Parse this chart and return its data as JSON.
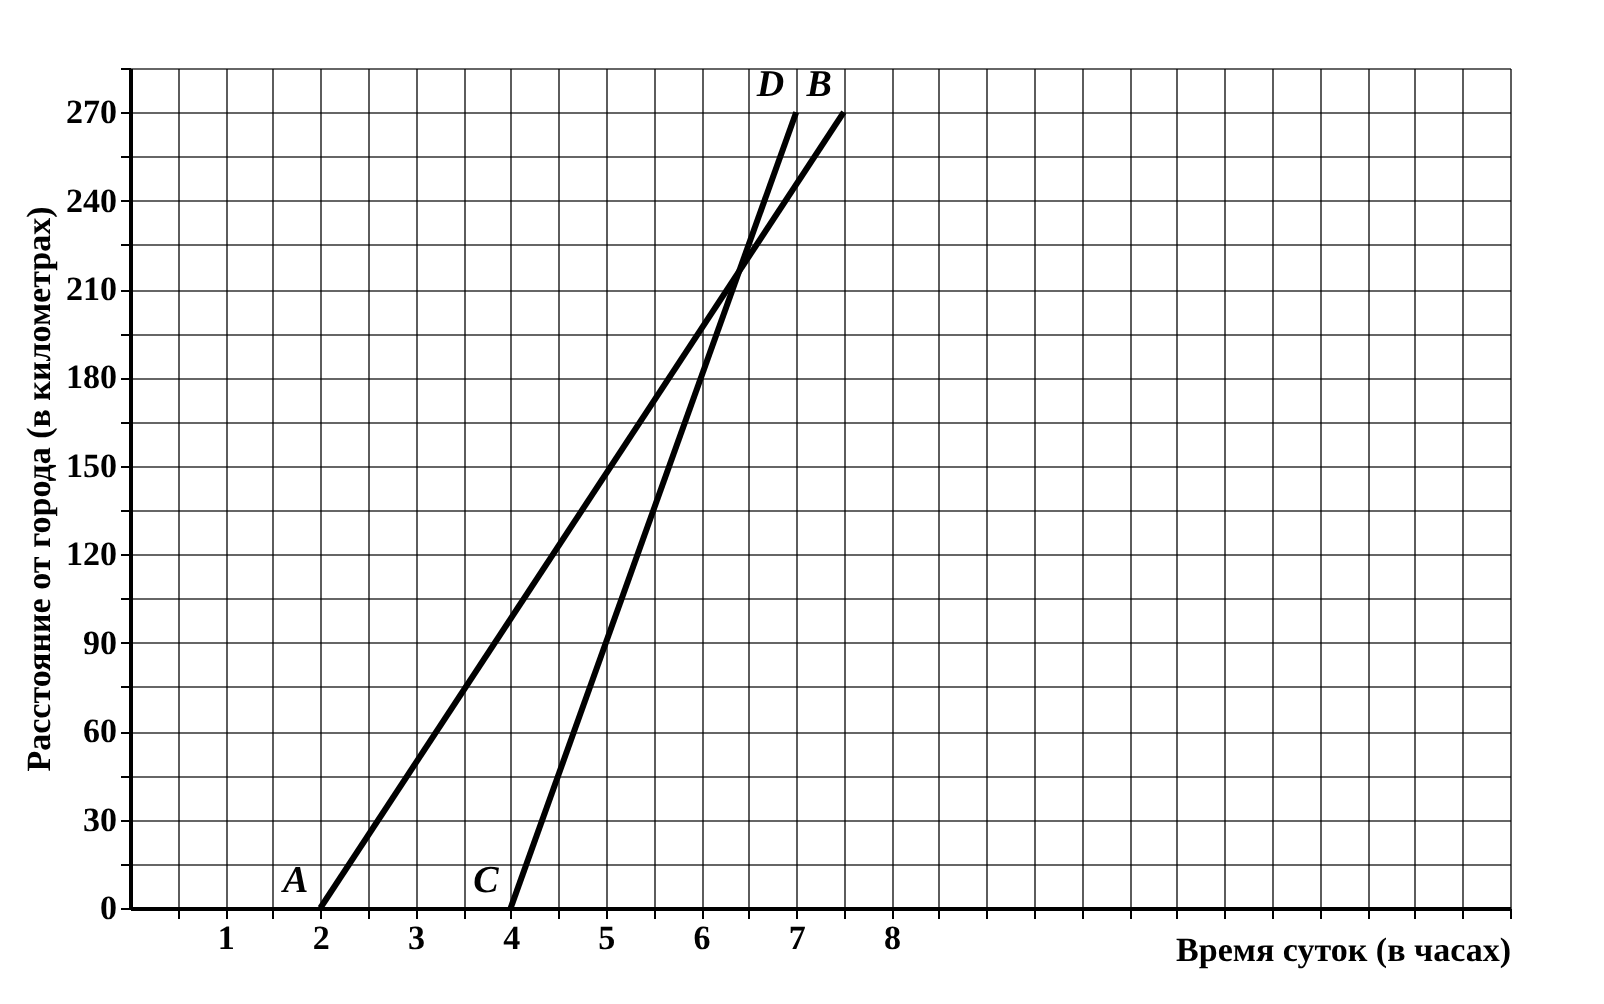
{
  "chart_data": {
    "type": "line",
    "xlabel": "Время суток (в часах)",
    "ylabel": "Расстояние от города (в километрах)",
    "xlim": [
      0,
      14.5
    ],
    "ylim": [
      0,
      285
    ],
    "xticks": [
      {
        "value": 0.5,
        "label": null
      },
      1,
      {
        "value": 1.5,
        "label": null
      },
      2,
      {
        "value": 2.5,
        "label": null
      },
      3,
      {
        "value": 3.5,
        "label": null
      },
      4,
      {
        "value": 4.5,
        "label": null
      },
      5,
      {
        "value": 5.5,
        "label": null
      },
      6,
      {
        "value": 6.5,
        "label": null
      },
      7,
      {
        "value": 7.5,
        "label": null
      },
      8,
      {
        "value": 8.5,
        "label": null
      },
      {
        "value": 9,
        "label": null
      },
      {
        "value": 9.5,
        "label": null
      },
      {
        "value": 10,
        "label": null
      },
      {
        "value": 10.5,
        "label": null
      },
      {
        "value": 11,
        "label": null
      },
      {
        "value": 11.5,
        "label": null
      },
      {
        "value": 12,
        "label": null
      },
      {
        "value": 12.5,
        "label": null
      },
      {
        "value": 13,
        "label": null
      },
      {
        "value": 13.5,
        "label": null
      },
      {
        "value": 14,
        "label": null
      },
      {
        "value": 14.5,
        "label": null
      }
    ],
    "yticks": [
      0,
      {
        "value": 15,
        "label": null
      },
      30,
      {
        "value": 45,
        "label": null
      },
      60,
      {
        "value": 75,
        "label": null
      },
      90,
      {
        "value": 105,
        "label": null
      },
      120,
      {
        "value": 135,
        "label": null
      },
      150,
      {
        "value": 165,
        "label": null
      },
      180,
      {
        "value": 195,
        "label": null
      },
      210,
      {
        "value": 225,
        "label": null
      },
      240,
      {
        "value": 255,
        "label": null
      },
      270,
      {
        "value": 285,
        "label": null
      }
    ],
    "grid": true,
    "marker": "none",
    "line_style": "solid",
    "series": [
      {
        "color": "#000000",
        "x": [
          2,
          7.5
        ],
        "values": [
          0,
          270
        ]
      },
      {
        "color": "#000000",
        "x": [
          4,
          7
        ],
        "values": [
          0,
          270
        ]
      }
    ],
    "annotations": [
      {
        "text": "A",
        "x": 2,
        "y": 0
      },
      {
        "text": "B",
        "x": 7.5,
        "y": 270
      },
      {
        "text": "C",
        "x": 4,
        "y": 0
      },
      {
        "text": "D",
        "x": 7,
        "y": 270
      }
    ]
  }
}
